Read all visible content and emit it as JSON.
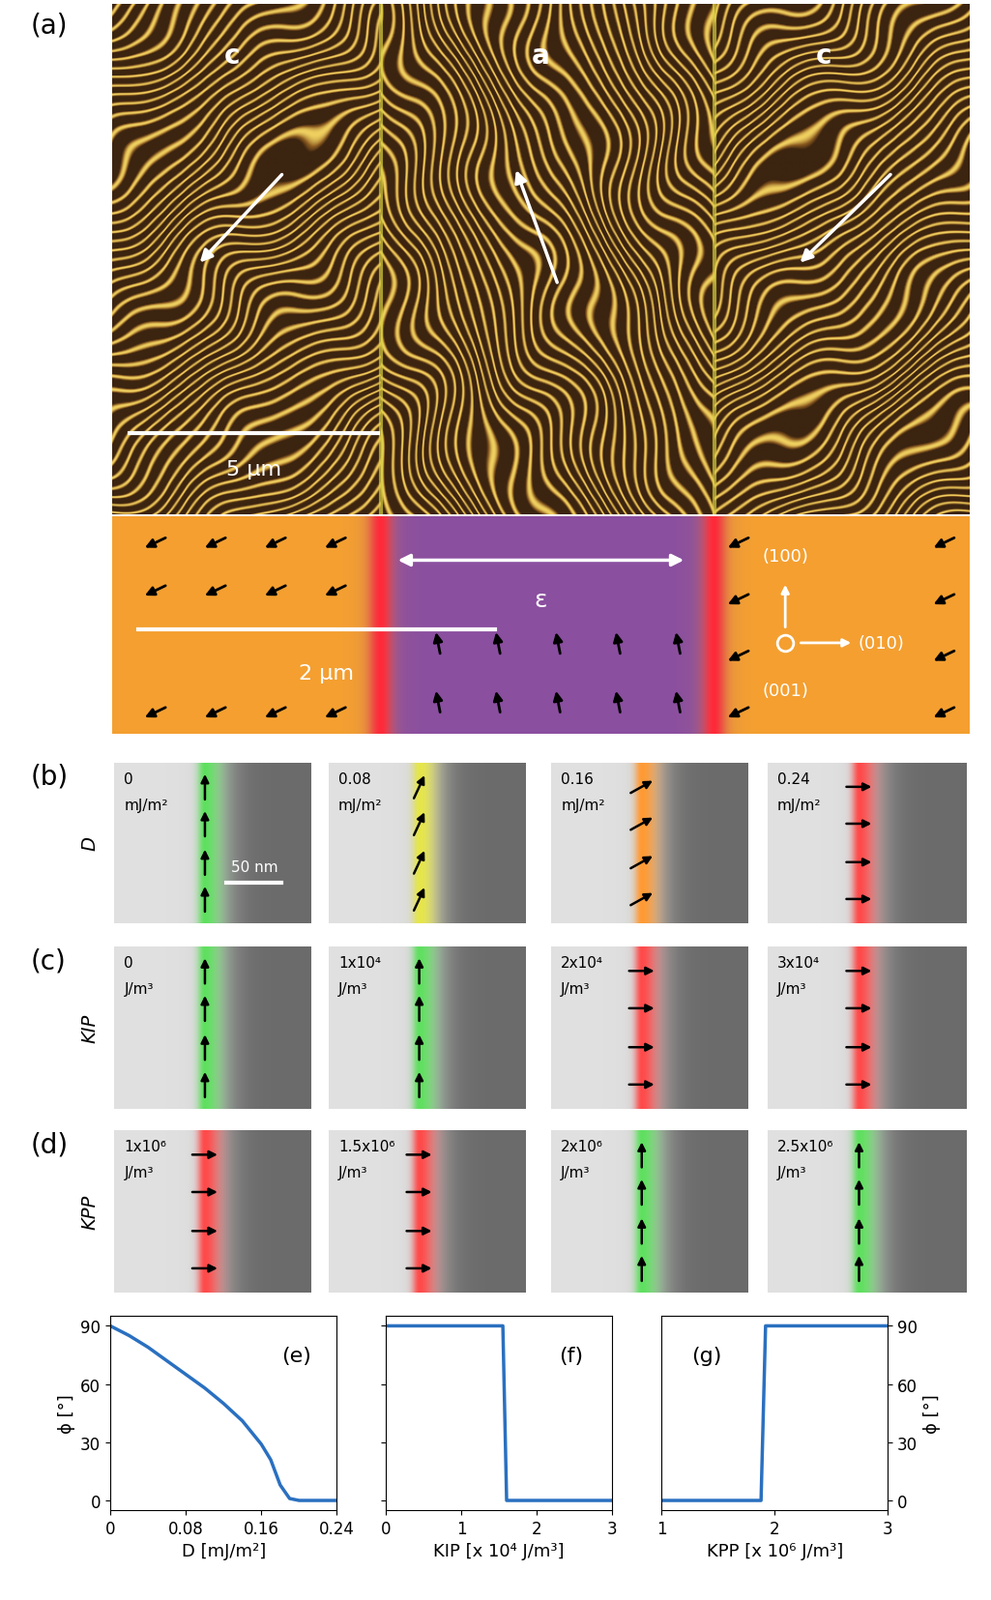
{
  "panels": {
    "a": {
      "label": "(a)",
      "image": {
        "regions": [
          "c",
          "a",
          "c"
        ],
        "scale_bar": "5 µm"
      },
      "schematic": {
        "strain": "ε",
        "scale_bar": "2 µm",
        "axes": [
          "(100)",
          "(010)",
          "(001)"
        ]
      }
    },
    "b": {
      "label": "(b)",
      "row_label": "D",
      "scale_bar": "50 nm",
      "walls": [
        {
          "value": "0",
          "unit": "mJ/m²",
          "angle": 90,
          "color": "#5fe05f"
        },
        {
          "value": "0.08",
          "unit": "mJ/m²",
          "angle": 65,
          "color": "#e6e64a"
        },
        {
          "value": "0.16",
          "unit": "mJ/m²",
          "angle": 29,
          "color": "#ff9a33"
        },
        {
          "value": "0.24",
          "unit": "mJ/m²",
          "angle": 0,
          "color": "#ff4a4a"
        }
      ]
    },
    "c": {
      "label": "(c)",
      "row_label": "KIP",
      "walls": [
        {
          "value": "0",
          "unit": "J/m³",
          "angle": 90,
          "color": "#5fe05f"
        },
        {
          "value": "1x10⁴",
          "unit": "J/m³",
          "angle": 90,
          "color": "#5fe05f"
        },
        {
          "value": "2x10⁴",
          "unit": "J/m³",
          "angle": 0,
          "color": "#ff4a4a"
        },
        {
          "value": "3x10⁴",
          "unit": "J/m³",
          "angle": 0,
          "color": "#ff4a4a"
        }
      ]
    },
    "d": {
      "label": "(d)",
      "row_label": "KPP",
      "walls": [
        {
          "value": "1x10⁶",
          "unit": "J/m³",
          "angle": 0,
          "color": "#ff4a4a"
        },
        {
          "value": "1.5x10⁶",
          "unit": "J/m³",
          "angle": 0,
          "color": "#ff4a4a"
        },
        {
          "value": "2x10⁶",
          "unit": "J/m³",
          "angle": 90,
          "color": "#5fe05f"
        },
        {
          "value": "2.5x10⁶",
          "unit": "J/m³",
          "angle": 90,
          "color": "#5fe05f"
        }
      ]
    }
  },
  "chart_data": [
    {
      "type": "line",
      "title": "(e)",
      "xlabel": "D [mJ/m²]",
      "ylabel": "ϕ [°]",
      "x": [
        0,
        0.02,
        0.04,
        0.06,
        0.08,
        0.1,
        0.12,
        0.14,
        0.16,
        0.17,
        0.18,
        0.19,
        0.2,
        0.22,
        0.24
      ],
      "values": [
        90,
        85,
        79,
        72,
        65,
        58,
        50,
        41,
        29,
        21,
        8,
        1,
        0,
        0,
        0
      ],
      "xlim": [
        0,
        0.24
      ],
      "xticks": [
        0,
        0.08,
        0.16,
        0.24
      ],
      "ylim": [
        -5,
        95
      ],
      "yticks": [
        0,
        30,
        60,
        90
      ],
      "color": "#2a70c0"
    },
    {
      "type": "line",
      "title": "(f)",
      "xlabel": "KIP [x 10⁴ J/m³]",
      "x": [
        0,
        1.55,
        1.6,
        3
      ],
      "values": [
        90,
        90,
        0,
        0
      ],
      "xlim": [
        0,
        3
      ],
      "xticks": [
        0,
        1,
        2,
        3
      ],
      "ylim": [
        -5,
        95
      ],
      "yticks": [
        0,
        30,
        60,
        90
      ],
      "tick_labels": "x",
      "color": "#2a70c0"
    },
    {
      "type": "line",
      "title": "(g)",
      "xlabel": "KPP [x 10⁶ J/m³]",
      "ylabel": "ϕ [°]",
      "x": [
        1,
        1.88,
        1.92,
        3
      ],
      "values": [
        0,
        0,
        90,
        90
      ],
      "xlim": [
        1,
        3
      ],
      "xticks": [
        1,
        2,
        3
      ],
      "ylim": [
        -5,
        95
      ],
      "yticks": [
        0,
        30,
        60,
        90
      ],
      "color": "#2a70c0"
    }
  ]
}
